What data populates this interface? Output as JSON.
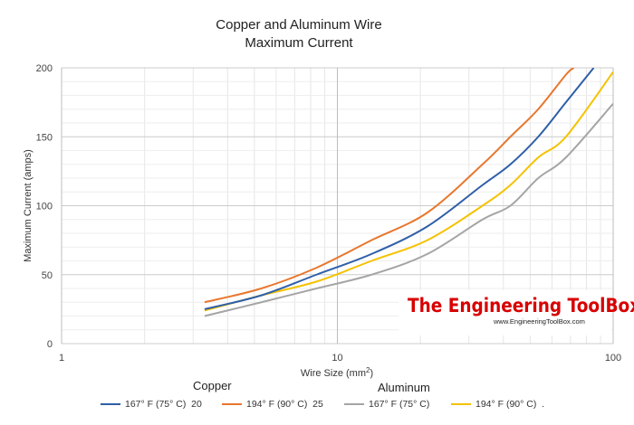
{
  "chart_data": {
    "type": "line",
    "title": "Copper and Aluminum Wire",
    "subtitle": "Maximum Current",
    "xlabel": "Wire Size (mm",
    "xlabel_sup": "2",
    "xlabel_tail": ")",
    "ylabel": "Maximum Current (amps)",
    "xscale": "log",
    "xlim": [
      1,
      100
    ],
    "ylim": [
      0,
      200
    ],
    "x_ticks": [
      1,
      10,
      100
    ],
    "y_ticks": [
      0,
      50,
      100,
      150,
      200
    ],
    "grid": true,
    "legend_position": "bottom",
    "group_labels": [
      "Copper",
      "Aluminum"
    ],
    "series": [
      {
        "name": "167° F (75° C)  20",
        "color": "#2f5fa8",
        "x": [
          3.3,
          5.3,
          8.4,
          13.3,
          21.2,
          33.6,
          42.4,
          53.5,
          67.4,
          85
        ],
        "y": [
          25,
          35,
          50,
          65,
          85,
          115,
          130,
          150,
          175,
          200
        ]
      },
      {
        "name": "194° F (90° C)  25",
        "color": "#e8772e",
        "x": [
          3.3,
          5.3,
          8.4,
          13.3,
          21.2,
          33.6,
          42.4,
          53.5,
          67.4,
          72
        ],
        "y": [
          30,
          40,
          55,
          75,
          95,
          130,
          150,
          170,
          195,
          200
        ]
      },
      {
        "name": "167° F (75° C)",
        "color": "#a5a5a5",
        "x": [
          3.3,
          5.3,
          8.4,
          13.3,
          21.2,
          33.6,
          42.4,
          53.5,
          67.4,
          100
        ],
        "y": [
          20,
          30,
          40,
          50,
          65,
          90,
          100,
          120,
          135,
          174
        ]
      },
      {
        "name": "194° F (90° C)  .",
        "color": "#f5c200",
        "x": [
          3.3,
          5.3,
          8.4,
          13.3,
          21.2,
          33.6,
          42.4,
          53.5,
          67.4,
          100
        ],
        "y": [
          24,
          35,
          45,
          60,
          75,
          100,
          115,
          135,
          150,
          197
        ]
      }
    ]
  },
  "watermark": {
    "title": "The Engineering ToolBox",
    "url": "www.EngineeringToolBox.com"
  }
}
